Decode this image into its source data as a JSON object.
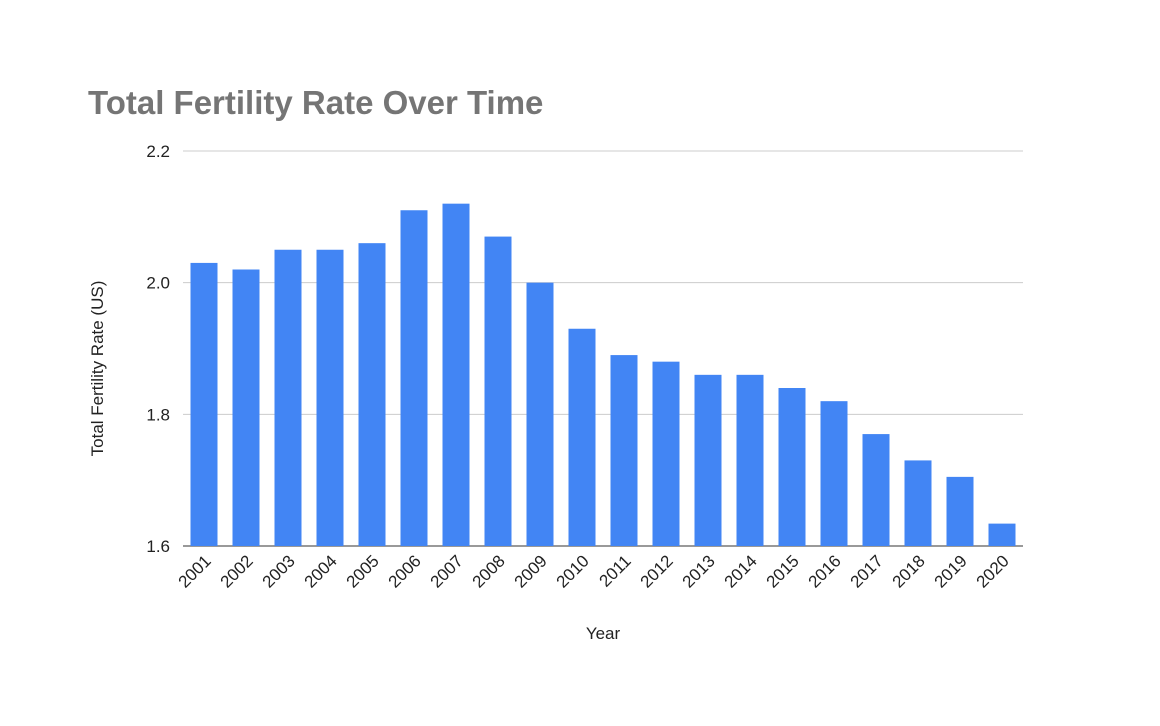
{
  "chart_data": {
    "type": "bar",
    "title": "Total Fertility Rate Over Time",
    "xlabel": "Year",
    "ylabel": "Total Fertility Rate (US)",
    "ylim": [
      1.6,
      2.2
    ],
    "yticks": [
      "1.6",
      "1.8",
      "2.0",
      "2.2"
    ],
    "grid": true,
    "legend": "none",
    "bar_color": "#4285F4",
    "categories": [
      "2001",
      "2002",
      "2003",
      "2004",
      "2005",
      "2006",
      "2007",
      "2008",
      "2009",
      "2010",
      "2011",
      "2012",
      "2013",
      "2014",
      "2015",
      "2016",
      "2017",
      "2018",
      "2019",
      "2020"
    ],
    "values": [
      2.03,
      2.02,
      2.05,
      2.05,
      2.06,
      2.11,
      2.12,
      2.07,
      2.0,
      1.93,
      1.89,
      1.88,
      1.86,
      1.86,
      1.84,
      1.82,
      1.77,
      1.73,
      1.705,
      1.634
    ]
  }
}
